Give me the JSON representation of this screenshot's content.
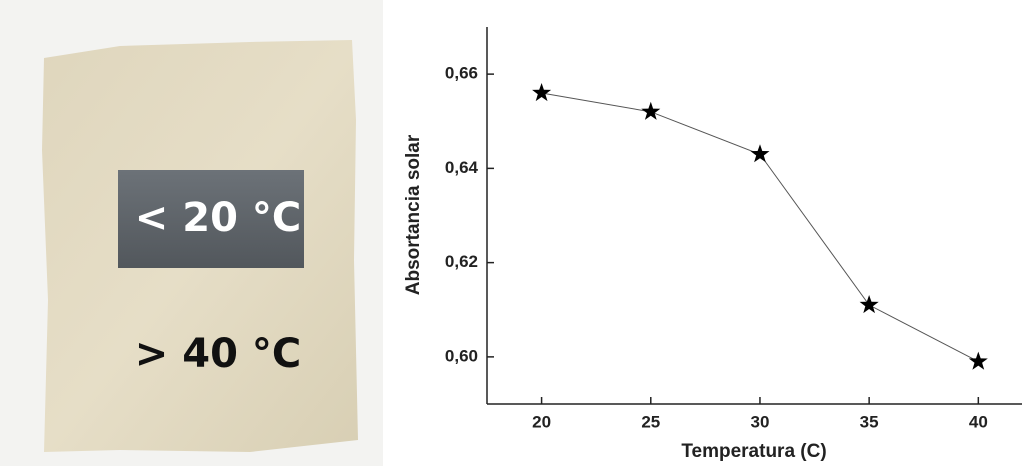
{
  "photo": {
    "labels": [
      "< 20 °C",
      "> 40 °C"
    ]
  },
  "chart_data": {
    "type": "line",
    "x_label": "Temperatura (C)",
    "y_label": "Absortancia solar",
    "x": [
      20,
      25,
      30,
      35,
      40
    ],
    "series": [
      {
        "color": "#000000",
        "values": [
          0.656,
          0.652,
          0.643,
          0.611,
          0.599
        ]
      }
    ],
    "xlim": [
      17.5,
      42
    ],
    "ylim": [
      0.59,
      0.67
    ],
    "xticks": [
      20,
      25,
      30,
      35,
      40
    ],
    "yticks": [
      {
        "value": 0.6,
        "label": "0,60"
      },
      {
        "value": 0.62,
        "label": "0,62"
      },
      {
        "value": 0.64,
        "label": "0,64"
      },
      {
        "value": 0.66,
        "label": "0,66"
      }
    ],
    "grid": false
  }
}
